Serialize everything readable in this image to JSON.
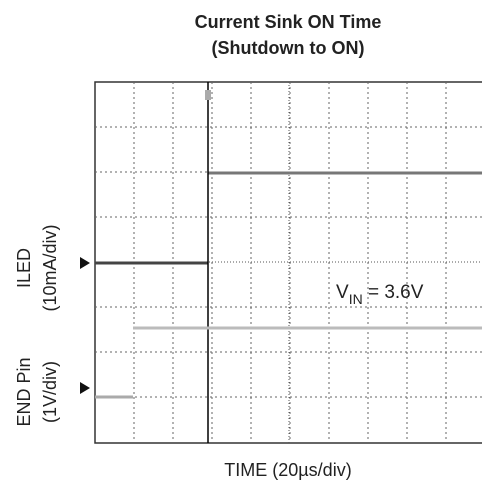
{
  "title_lines": [
    "Current Sink ON Time",
    "(Shutdown to ON)"
  ],
  "y_labels": {
    "iled": [
      "ILED",
      "(10mA/div)"
    ],
    "end": [
      "END Pin",
      "(1V/div)"
    ]
  },
  "x_label": "TIME (20µs/div)",
  "annotation": {
    "main": "V",
    "sub": "IN",
    "rest": " = 3.6V"
  }
}
